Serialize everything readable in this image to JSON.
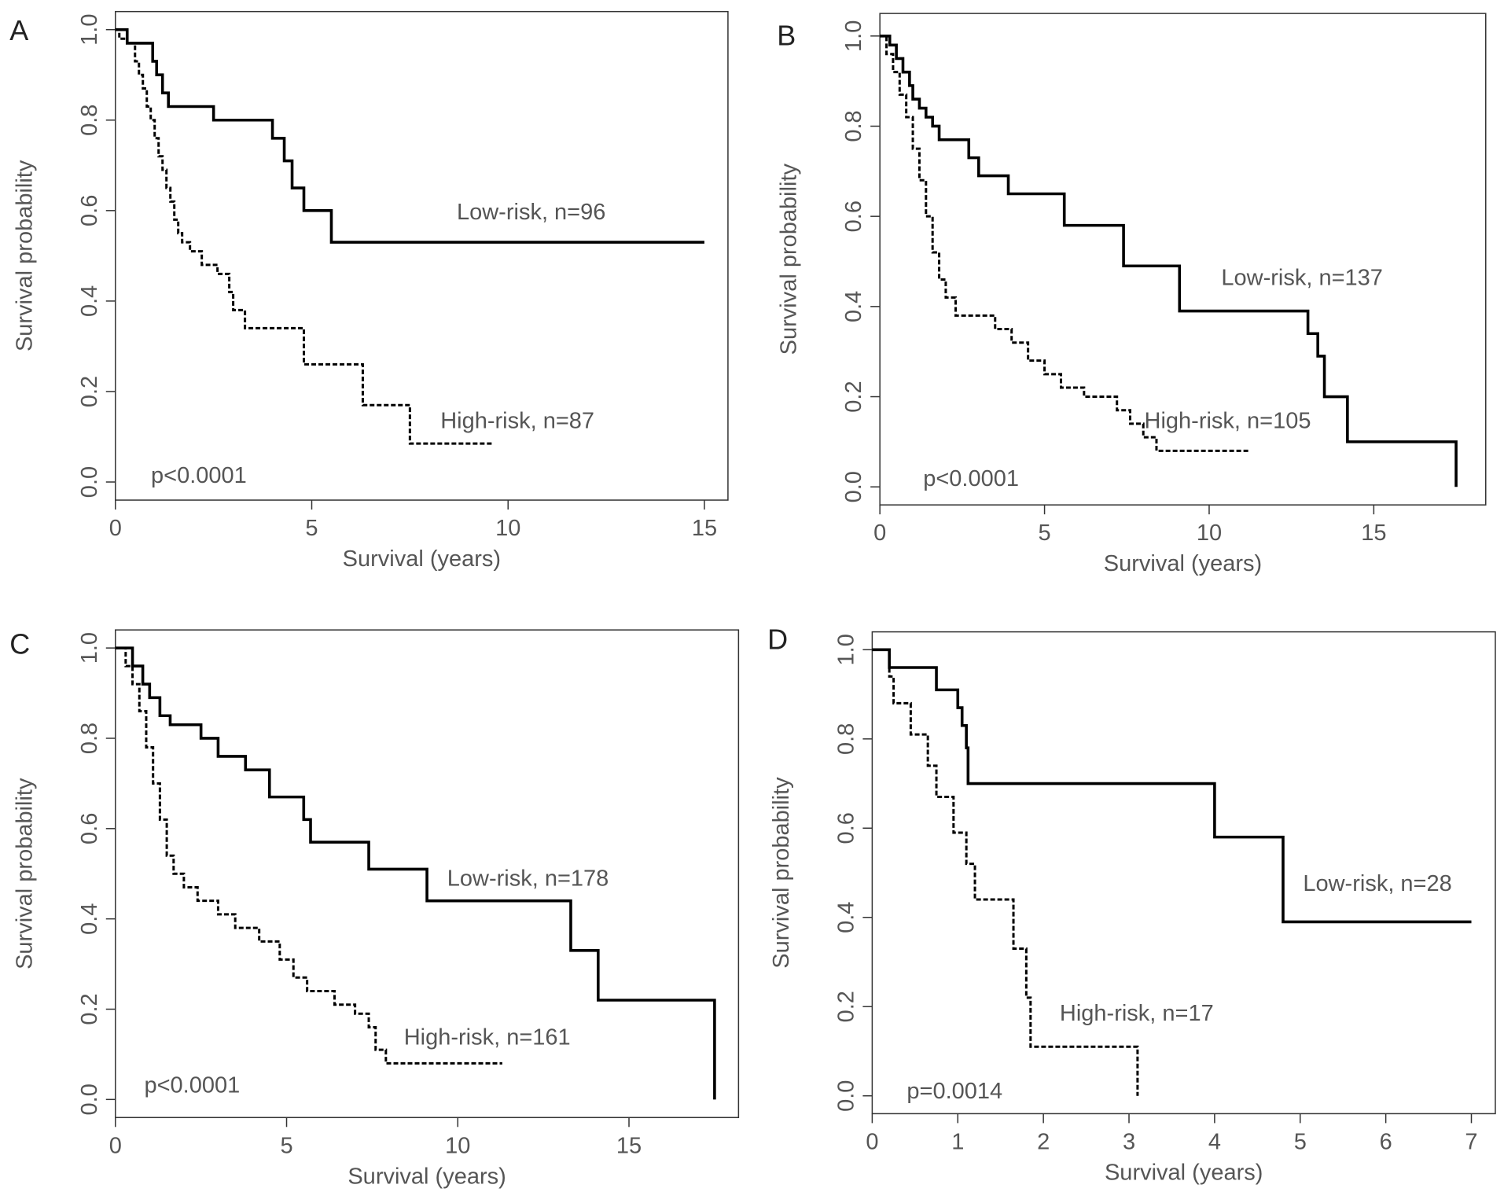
{
  "chart_data": [
    {
      "type": "step",
      "panel": "A",
      "xlabel": "Survival (years)",
      "ylabel": "Survival probability",
      "xlim": [
        0,
        15.6
      ],
      "ylim": [
        -0.04,
        1.04
      ],
      "xticks": [
        0,
        5,
        10,
        15
      ],
      "yticks": [
        {
          "value": 0,
          "label": "0.0"
        },
        0.2,
        0.4,
        0.6,
        0.8,
        {
          "value": 1,
          "label": "1.0"
        }
      ],
      "annotation": "p<0.0001",
      "series": [
        {
          "name": "Low-risk, n=96",
          "color": "#000000",
          "linestyle": "solid",
          "x": [
            0,
            0.3,
            0.95,
            1.05,
            1.2,
            1.35,
            2.5,
            4.0,
            4.3,
            4.5,
            4.8,
            5.5,
            15
          ],
          "values": [
            1,
            0.97,
            0.93,
            0.9,
            0.86,
            0.83,
            0.8,
            0.76,
            0.71,
            0.65,
            0.6,
            0.53,
            0.53
          ]
        },
        {
          "name": "High-risk, n=87",
          "color": "#000000",
          "linestyle": "dashed",
          "x": [
            0,
            0.1,
            0.3,
            0.5,
            0.6,
            0.7,
            0.8,
            0.9,
            1.0,
            1.1,
            1.2,
            1.3,
            1.4,
            1.5,
            1.6,
            1.7,
            1.9,
            2.2,
            2.6,
            2.9,
            3.0,
            3.3,
            4.8,
            6.3,
            7.5,
            9.6
          ],
          "values": [
            1,
            0.98,
            0.97,
            0.93,
            0.9,
            0.87,
            0.83,
            0.8,
            0.76,
            0.72,
            0.69,
            0.65,
            0.62,
            0.58,
            0.55,
            0.53,
            0.51,
            0.48,
            0.46,
            0.42,
            0.38,
            0.34,
            0.26,
            0.17,
            0.085,
            0.085
          ]
        }
      ]
    },
    {
      "type": "step",
      "panel": "B",
      "xlabel": "Survival (years)",
      "ylabel": "Survival probability",
      "xlim": [
        0,
        18.4
      ],
      "ylim": [
        -0.04,
        1.05
      ],
      "xticks": [
        0,
        5,
        10,
        15
      ],
      "yticks": [
        {
          "value": 0,
          "label": "0.0"
        },
        0.2,
        0.4,
        0.6,
        0.8,
        {
          "value": 1,
          "label": "1.0"
        }
      ],
      "annotation": "p<0.0001",
      "series": [
        {
          "name": "Low-risk, n=137",
          "color": "#000000",
          "linestyle": "solid",
          "x": [
            0,
            0.3,
            0.5,
            0.7,
            0.9,
            1.0,
            1.2,
            1.4,
            1.6,
            1.8,
            2.7,
            3.0,
            3.9,
            5.6,
            7.4,
            9.1,
            13.0,
            13.3,
            13.5,
            14.2,
            17.5
          ],
          "values": [
            1,
            0.98,
            0.95,
            0.92,
            0.89,
            0.86,
            0.84,
            0.82,
            0.8,
            0.77,
            0.73,
            0.69,
            0.65,
            0.58,
            0.49,
            0.39,
            0.34,
            0.29,
            0.2,
            0.1,
            0
          ]
        },
        {
          "name": "High-risk, n=105",
          "color": "#000000",
          "linestyle": "dashed",
          "x": [
            0,
            0.2,
            0.4,
            0.6,
            0.8,
            1.0,
            1.2,
            1.4,
            1.6,
            1.8,
            2.0,
            2.3,
            3.5,
            4.0,
            4.5,
            5.0,
            5.5,
            6.2,
            7.2,
            7.6,
            8.0,
            8.4,
            11.2
          ],
          "values": [
            1,
            0.96,
            0.92,
            0.87,
            0.82,
            0.75,
            0.68,
            0.6,
            0.52,
            0.46,
            0.42,
            0.38,
            0.35,
            0.32,
            0.28,
            0.25,
            0.22,
            0.2,
            0.17,
            0.14,
            0.11,
            0.08,
            0.08
          ]
        }
      ]
    },
    {
      "type": "step",
      "panel": "C",
      "xlabel": "Survival (years)",
      "ylabel": "Survival probability",
      "xlim": [
        0,
        18.2
      ],
      "ylim": [
        -0.04,
        1.04
      ],
      "xticks": [
        0,
        5,
        10,
        15
      ],
      "yticks": [
        {
          "value": 0,
          "label": "0.0"
        },
        0.2,
        0.4,
        0.6,
        0.8,
        {
          "value": 1,
          "label": "1.0"
        }
      ],
      "annotation": "p<0.0001",
      "series": [
        {
          "name": "Low-risk, n=178",
          "color": "#000000",
          "linestyle": "solid",
          "x": [
            0,
            0.5,
            0.8,
            1.0,
            1.3,
            1.6,
            2.5,
            3.0,
            3.8,
            4.5,
            5.5,
            5.7,
            7.4,
            9.1,
            13.3,
            14.1,
            17.5
          ],
          "values": [
            1,
            0.96,
            0.92,
            0.89,
            0.85,
            0.83,
            0.8,
            0.76,
            0.73,
            0.67,
            0.62,
            0.57,
            0.51,
            0.44,
            0.33,
            0.22,
            0
          ]
        },
        {
          "name": "High-risk, n=161",
          "color": "#000000",
          "linestyle": "dashed",
          "x": [
            0,
            0.3,
            0.5,
            0.7,
            0.9,
            1.1,
            1.3,
            1.5,
            1.7,
            2.0,
            2.4,
            3.0,
            3.5,
            4.2,
            4.8,
            5.2,
            5.6,
            6.4,
            7.0,
            7.4,
            7.6,
            7.9,
            11.3
          ],
          "values": [
            1,
            0.96,
            0.92,
            0.86,
            0.78,
            0.7,
            0.62,
            0.54,
            0.5,
            0.47,
            0.44,
            0.41,
            0.38,
            0.35,
            0.31,
            0.27,
            0.24,
            0.21,
            0.19,
            0.16,
            0.11,
            0.08,
            0.08
          ]
        }
      ]
    },
    {
      "type": "step",
      "panel": "D",
      "xlabel": "Survival (years)",
      "ylabel": "Survival probability",
      "xlim": [
        0,
        7.28
      ],
      "ylim": [
        -0.04,
        1.04
      ],
      "xticks": [
        0,
        1,
        2,
        3,
        4,
        5,
        6,
        7
      ],
      "yticks": [
        {
          "value": 0,
          "label": "0.0"
        },
        0.2,
        0.4,
        0.6,
        0.8,
        {
          "value": 1,
          "label": "1.0"
        }
      ],
      "annotation": "p=0.0014",
      "series": [
        {
          "name": "Low-risk, n=28",
          "color": "#000000",
          "linestyle": "solid",
          "x": [
            0,
            0.2,
            0.75,
            1.0,
            1.05,
            1.1,
            1.12,
            4.0,
            4.8,
            7.0
          ],
          "values": [
            1,
            0.96,
            0.91,
            0.87,
            0.83,
            0.78,
            0.7,
            0.58,
            0.39,
            0.39
          ]
        },
        {
          "name": "High-risk, n=17",
          "color": "#000000",
          "linestyle": "dashed",
          "x": [
            0,
            0.2,
            0.25,
            0.45,
            0.65,
            0.75,
            0.95,
            1.1,
            1.2,
            1.65,
            1.8,
            1.85,
            3.1
          ],
          "values": [
            1,
            0.94,
            0.88,
            0.81,
            0.74,
            0.67,
            0.59,
            0.52,
            0.44,
            0.33,
            0.22,
            0.11,
            0
          ]
        }
      ]
    }
  ]
}
